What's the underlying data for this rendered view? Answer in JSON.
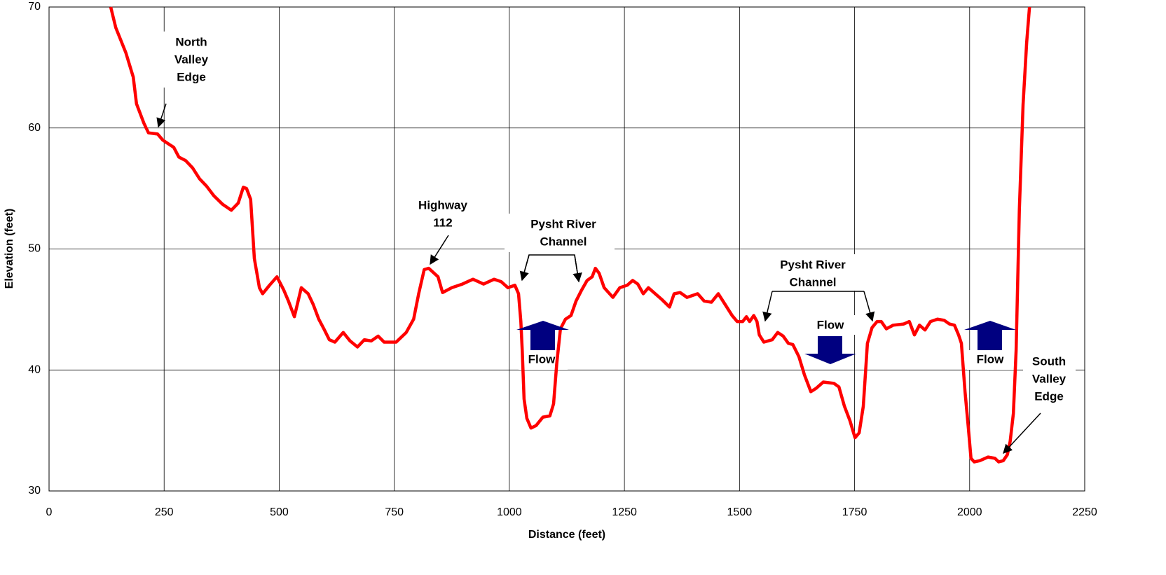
{
  "chart_data": {
    "type": "line",
    "x_label": "Distance (feet)",
    "y_label": "Elevation (feet)",
    "xlim": [
      0,
      2250
    ],
    "xticks": [
      0,
      250,
      500,
      750,
      1000,
      1250,
      1500,
      1750,
      2000,
      2250
    ],
    "ylim": [
      30,
      70
    ],
    "yticks": [
      30,
      40,
      50,
      60,
      70
    ],
    "grid": true,
    "series": [
      {
        "color": "#ff0000",
        "x": [
          134,
          145,
          167,
          183,
          190,
          206,
          216,
          236,
          247,
          259,
          271,
          282,
          297,
          312,
          327,
          342,
          358,
          377,
          396,
          411,
          422,
          429,
          438,
          446,
          457,
          464,
          479,
          495,
          510,
          520,
          533,
          548,
          563,
          574,
          586,
          597,
          609,
          621,
          639,
          654,
          670,
          685,
          700,
          715,
          728,
          754,
          776,
          792,
          803,
          815,
          825,
          845,
          855,
          875,
          898,
          921,
          944,
          967,
          982,
          997,
          1012,
          1020,
          1025,
          1028,
          1032,
          1038,
          1047,
          1058,
          1073,
          1088,
          1096,
          1103,
          1111,
          1122,
          1134,
          1145,
          1157,
          1169,
          1180,
          1187,
          1195,
          1206,
          1225,
          1240,
          1256,
          1268,
          1279,
          1291,
          1302,
          1317,
          1332,
          1348,
          1358,
          1371,
          1386,
          1409,
          1423,
          1439,
          1454,
          1469,
          1484,
          1495,
          1507,
          1515,
          1522,
          1531,
          1538,
          1543,
          1553,
          1571,
          1583,
          1595,
          1606,
          1616,
          1629,
          1641,
          1655,
          1667,
          1682,
          1705,
          1716,
          1728,
          1740,
          1751,
          1760,
          1769,
          1778,
          1788,
          1799,
          1808,
          1819,
          1834,
          1857,
          1869,
          1880,
          1891,
          1903,
          1915,
          1930,
          1945,
          1956,
          1967,
          1976,
          1982,
          1990,
          1997,
          2003,
          2010,
          2022,
          2040,
          2055,
          2063,
          2073,
          2082,
          2088,
          2095,
          2101,
          2108,
          2116,
          2124,
          2130
        ],
        "values": [
          70,
          68.3,
          66.2,
          64.2,
          62,
          60.4,
          59.6,
          59.5,
          59,
          58.7,
          58.4,
          57.6,
          57.3,
          56.7,
          55.8,
          55.2,
          54.4,
          53.7,
          53.2,
          53.8,
          55.1,
          55,
          54.1,
          49.2,
          46.8,
          46.3,
          47,
          47.7,
          46.6,
          45.7,
          44.4,
          46.8,
          46.3,
          45.4,
          44.2,
          43.4,
          42.5,
          42.3,
          43.1,
          42.4,
          41.9,
          42.5,
          42.4,
          42.8,
          42.3,
          42.3,
          43.1,
          44.2,
          46.3,
          48.3,
          48.4,
          47.7,
          46.4,
          46.8,
          47.1,
          47.5,
          47.1,
          47.5,
          47.3,
          46.8,
          47,
          46.3,
          44,
          41.6,
          37.6,
          36,
          35.2,
          35.4,
          36.1,
          36.2,
          37.2,
          40.5,
          43.4,
          44.2,
          44.5,
          45.7,
          46.6,
          47.4,
          47.7,
          48.4,
          48,
          46.8,
          46,
          46.8,
          47,
          47.4,
          47.1,
          46.3,
          46.8,
          46.3,
          45.8,
          45.2,
          46.3,
          46.4,
          46,
          46.3,
          45.7,
          45.6,
          46.3,
          45.4,
          44.5,
          44,
          44,
          44.4,
          44,
          44.5,
          44,
          42.9,
          42.3,
          42.5,
          43.1,
          42.8,
          42.2,
          42.1,
          41.1,
          39.6,
          38.2,
          38.5,
          39,
          38.9,
          38.6,
          37,
          35.8,
          34.4,
          34.8,
          37,
          42.2,
          43.5,
          44,
          44,
          43.4,
          43.7,
          43.8,
          44,
          42.9,
          43.7,
          43.3,
          44,
          44.2,
          44.1,
          43.8,
          43.7,
          42.9,
          42.2,
          38.2,
          35.3,
          32.7,
          32.4,
          32.5,
          32.8,
          32.7,
          32.4,
          32.5,
          33,
          34.1,
          36.4,
          41.6,
          53.2,
          61.9,
          67.1,
          70
        ]
      }
    ],
    "annotations": [
      {
        "lines": [
          "North",
          "Valley",
          "Edge"
        ]
      },
      {
        "lines": [
          "Highway",
          "112"
        ]
      },
      {
        "lines": [
          "Pysht River",
          "Channel"
        ]
      },
      {
        "lines": [
          "Pysht River",
          "Channel"
        ]
      },
      {
        "lines": [
          "Flow"
        ]
      },
      {
        "lines": [
          "Flow"
        ]
      },
      {
        "lines": [
          "Flow"
        ]
      },
      {
        "lines": [
          "South",
          "Valley",
          "Edge"
        ]
      }
    ]
  }
}
